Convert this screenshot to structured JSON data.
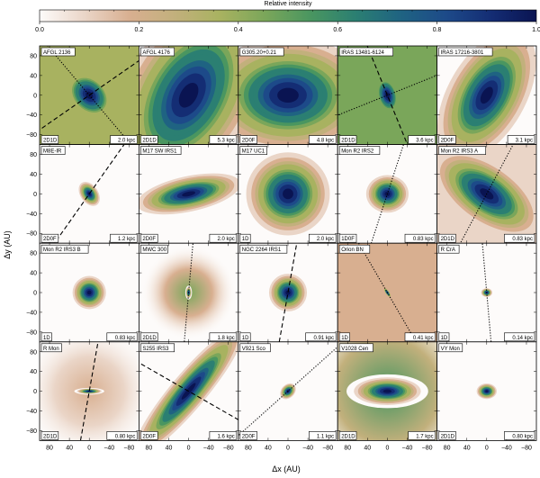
{
  "chart_data": {
    "type": "heatmap",
    "title": "",
    "xlabel": "Δx (AU)",
    "ylabel": "Δy (AU)",
    "xlim": [
      100,
      -100
    ],
    "ylim": [
      -100,
      100
    ],
    "xticks": [
      80,
      40,
      0,
      -40,
      -80
    ],
    "yticks": [
      80,
      40,
      0,
      -40,
      -80
    ],
    "colorbar": {
      "label": "Relative intensity",
      "range": [
        0.0,
        1.0
      ],
      "ticks": [
        0.0,
        0.2,
        0.4,
        0.6,
        0.8,
        1.0
      ],
      "tick_labels": [
        "0.0",
        "0.2",
        "0.4",
        "0.6",
        "0.8",
        "1.0"
      ]
    },
    "colormap": [
      "#fdfbfa",
      "#ead5c7",
      "#d8af90",
      "#c2b07c",
      "#a8b260",
      "#7aa65a",
      "#4a9660",
      "#2b7f72",
      "#1f6382",
      "#1d4a89",
      "#142d74",
      "#0a1452"
    ],
    "panels": [
      {
        "name": "AFGL 2136",
        "model": "2D1D",
        "distance": "2.0 kpc",
        "fwhm_major_au": 60,
        "fwhm_minor_au": 45,
        "pa_deg": 135,
        "background": 0.32,
        "outflow": [
          {
            "angle_deg": 35,
            "style": "dashed"
          }
        ],
        "disk": [
          {
            "angle_deg": 130,
            "style": "dotted"
          }
        ]
      },
      {
        "name": "AFGL 4176",
        "model": "2D1D",
        "distance": "5.3 kpc",
        "fwhm_major_au": 190,
        "fwhm_minor_au": 115,
        "pa_deg": 60,
        "background": 0.0,
        "outflow": [],
        "disk": []
      },
      {
        "name": "G305.20+0.21",
        "model": "2D0F",
        "distance": "4.8 kpc",
        "fwhm_major_au": 150,
        "fwhm_minor_au": 105,
        "pa_deg": 0,
        "background": 0.0,
        "outflow": [],
        "disk": []
      },
      {
        "name": "IRAS 13481-6124",
        "model": "2D1D",
        "distance": "3.6 kpc",
        "fwhm_major_au": 45,
        "fwhm_minor_au": 27,
        "pa_deg": 105,
        "background": 0.46,
        "outflow": [
          {
            "angle_deg": 112,
            "style": "dashed"
          }
        ],
        "disk": [
          {
            "angle_deg": 22,
            "style": "dotted"
          }
        ]
      },
      {
        "name": "IRAS 17216-3801",
        "model": "2D0F",
        "distance": "3.1 kpc",
        "fwhm_major_au": 130,
        "fwhm_minor_au": 70,
        "pa_deg": 60,
        "background": 0.0,
        "outflow": [],
        "disk": []
      },
      {
        "name": "M8E-IR",
        "model": "2D0F",
        "distance": "1.2 kpc",
        "fwhm_major_au": 24,
        "fwhm_minor_au": 16,
        "pa_deg": 125,
        "background": 0.0,
        "outflow": [
          {
            "angle_deg": 55,
            "style": "dashed"
          }
        ],
        "disk": []
      },
      {
        "name": "M17 SW IRS1",
        "model": "2D0F",
        "distance": "2.0 kpc",
        "fwhm_major_au": 95,
        "fwhm_minor_au": 32,
        "pa_deg": 12,
        "background": 0.0,
        "outflow": [],
        "disk": []
      },
      {
        "name": "M17 UC1",
        "model": "1D",
        "distance": "2.0 kpc",
        "fwhm_major_au": 75,
        "fwhm_minor_au": 75,
        "pa_deg": 0,
        "background": 0.0,
        "outflow": [],
        "disk": []
      },
      {
        "name": "Mon R2 IRS2",
        "model": "1D0F",
        "distance": "0.83 kpc",
        "fwhm_major_au": 38,
        "fwhm_minor_au": 34,
        "pa_deg": 0,
        "background": 0.0,
        "outflow": [
          {
            "angle_deg": 72,
            "style": "dotted"
          }
        ],
        "disk": []
      },
      {
        "name": "Mon R2 IRS3 A",
        "model": "2D1D",
        "distance": "0.83 kpc",
        "fwhm_major_au": 110,
        "fwhm_minor_au": 55,
        "pa_deg": 145,
        "background": 0.12,
        "outflow": [
          {
            "angle_deg": 62,
            "style": "dotted"
          }
        ],
        "disk": []
      },
      {
        "name": "Mon R2 IRS3 B",
        "model": "1D",
        "distance": "0.83 kpc",
        "fwhm_major_au": 30,
        "fwhm_minor_au": 30,
        "pa_deg": 0,
        "background": 0.0,
        "outflow": [],
        "disk": []
      },
      {
        "name": "MWC 300",
        "model": "2D1D",
        "distance": "1.8 kpc",
        "fwhm_major_au": 10,
        "fwhm_minor_au": 5,
        "pa_deg": 90,
        "background": 0.0,
        "halo_au": 95,
        "halo_peak": 0.45,
        "outflow": [
          {
            "angle_deg": 85,
            "style": "dotted"
          }
        ],
        "disk": []
      },
      {
        "name": "NGC 2264 IRS1",
        "model": "1D",
        "distance": "0.91 kpc",
        "fwhm_major_au": 34,
        "fwhm_minor_au": 34,
        "pa_deg": 0,
        "background": 0.0,
        "outflow": [
          {
            "angle_deg": 80,
            "style": "dashed"
          }
        ],
        "disk": []
      },
      {
        "name": "Orion BN",
        "model": "1D",
        "distance": "0.41 kpc",
        "fwhm_major_au": 12,
        "fwhm_minor_au": 4,
        "pa_deg": 125,
        "background": 0.2,
        "outflow": [
          {
            "angle_deg": 120,
            "style": "dotted"
          }
        ],
        "disk": []
      },
      {
        "name": "R CrA",
        "model": "1D",
        "distance": "0.14 kpc",
        "fwhm_major_au": 10,
        "fwhm_minor_au": 8,
        "pa_deg": 0,
        "background": 0.0,
        "outflow": [
          {
            "angle_deg": 95,
            "style": "dotted"
          }
        ],
        "disk": []
      },
      {
        "name": "R Mon",
        "model": "2D1D",
        "distance": "0.80 kpc",
        "fwhm_major_au": 22,
        "fwhm_minor_au": 5,
        "pa_deg": 0,
        "background": 0.0,
        "halo_au": 140,
        "halo_peak": 0.14,
        "outflow": [
          {
            "angle_deg": 80,
            "style": "dashed"
          }
        ],
        "disk": []
      },
      {
        "name": "S255 IRS3",
        "model": "2D0F",
        "distance": "1.6 kpc",
        "fwhm_major_au": 150,
        "fwhm_minor_au": 32,
        "pa_deg": 50,
        "background": 0.0,
        "outflow": [],
        "disk": [
          {
            "angle_deg": 150,
            "style": "dashed"
          }
        ]
      },
      {
        "name": "V921 Sco",
        "model": "2D0F",
        "distance": "1.1 kpc",
        "fwhm_major_au": 16,
        "fwhm_minor_au": 12,
        "pa_deg": 45,
        "background": 0.0,
        "outflow": [
          {
            "angle_deg": 42,
            "style": "dotted"
          }
        ],
        "disk": []
      },
      {
        "name": "V1028 Cen",
        "model": "2D1D",
        "distance": "1.7 kpc",
        "fwhm_major_au": 60,
        "fwhm_minor_au": 25,
        "pa_deg": 0,
        "background": 0.0,
        "halo_au": 210,
        "halo_peak": 0.55,
        "outflow": [],
        "disk": []
      },
      {
        "name": "VY Mon",
        "model": "2D1D",
        "distance": "0.80 kpc",
        "fwhm_major_au": 18,
        "fwhm_minor_au": 14,
        "pa_deg": 0,
        "background": 0.0,
        "outflow": [],
        "disk": []
      }
    ]
  }
}
